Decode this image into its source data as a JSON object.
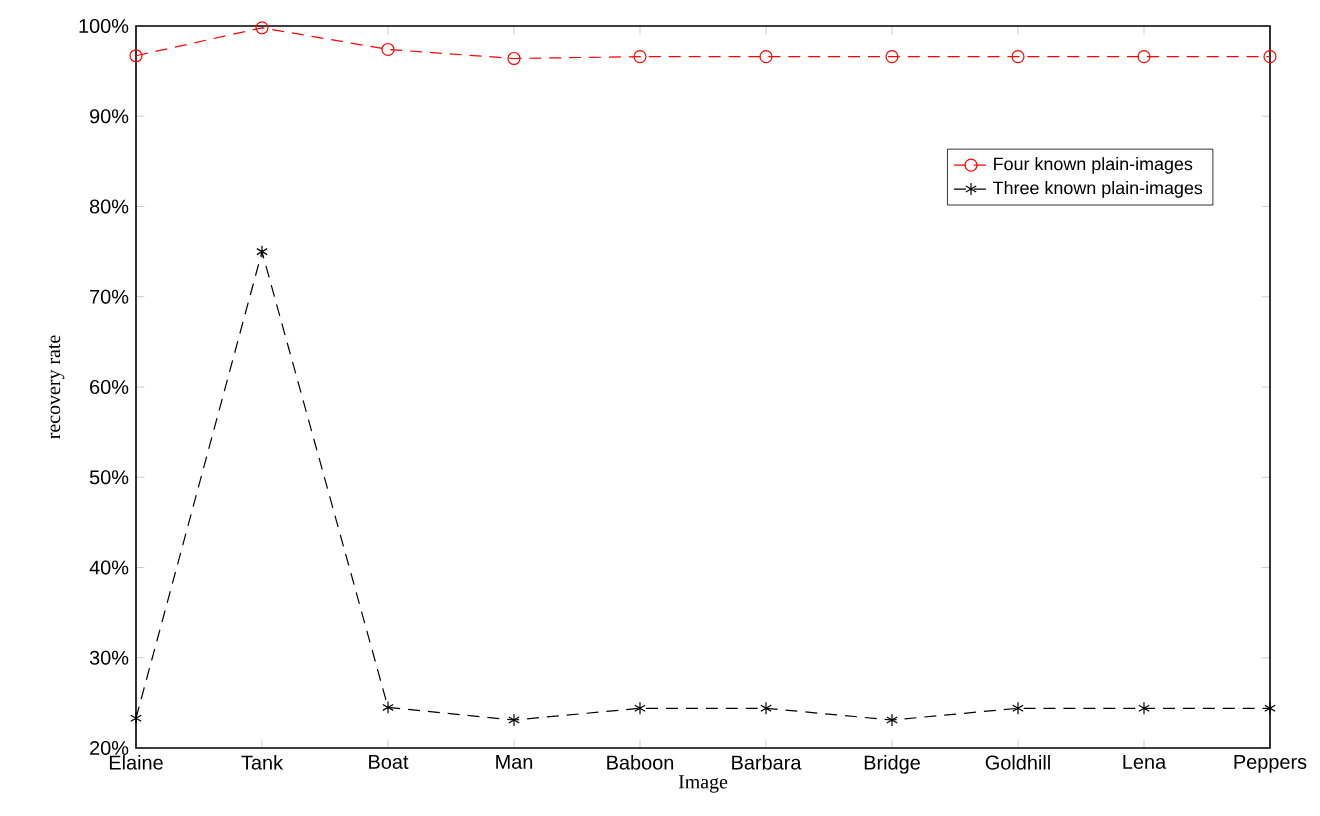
{
  "chart_data": {
    "type": "line",
    "xlabel": "Image",
    "ylabel": "recovery rate",
    "categories": [
      "Elaine",
      "Tank",
      "Boat",
      "Man",
      "Baboon",
      "Barbara",
      "Bridge",
      "Goldhill",
      "Lena",
      "Peppers"
    ],
    "series": [
      {
        "name": "Four known plain-images",
        "color": "#ff0000",
        "marker": "circle",
        "values": [
          96.7,
          99.8,
          97.4,
          96.4,
          96.6,
          96.6,
          96.6,
          96.6,
          96.6,
          96.6
        ]
      },
      {
        "name": "Three known plain-images",
        "color": "#000000",
        "marker": "cross",
        "values": [
          23.3,
          75.0,
          24.5,
          23.1,
          24.4,
          24.4,
          23.1,
          24.4,
          24.4,
          24.4
        ]
      }
    ],
    "ylim": [
      20,
      100
    ],
    "yticks": [
      {
        "value": 20,
        "label": "20%"
      },
      {
        "value": 30,
        "label": "30%"
      },
      {
        "value": 40,
        "label": "40%"
      },
      {
        "value": 50,
        "label": "50%"
      },
      {
        "value": 60,
        "label": "60%"
      },
      {
        "value": 70,
        "label": "70%"
      },
      {
        "value": 80,
        "label": "80%"
      },
      {
        "value": 90,
        "label": "90%"
      },
      {
        "value": 100,
        "label": "100%"
      }
    ],
    "line_style": "dashed",
    "grid": false,
    "legend": "top right"
  }
}
